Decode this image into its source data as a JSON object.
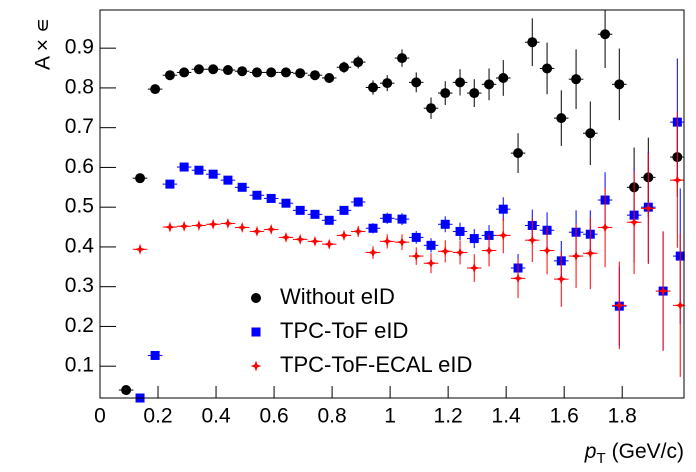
{
  "chart_data": {
    "type": "scatter",
    "ylabel": "A × ∊",
    "xlabel": {
      "symbol": "p",
      "subscript": "T",
      "unit": "(GeV/c)"
    },
    "xlim": [
      0,
      2.013
    ],
    "ylim": [
      0.02,
      0.996
    ],
    "xticks": [
      0,
      0.2,
      0.4,
      0.6,
      0.8,
      1,
      1.2,
      1.4,
      1.6,
      1.8
    ],
    "yticks": [
      0.1,
      0.2,
      0.3,
      0.4,
      0.5,
      0.6,
      0.7,
      0.8,
      0.9
    ],
    "xerr": 0.025,
    "series": [
      {
        "name": "Without eID",
        "color": "#000000",
        "marker": "circle",
        "x": [
          0.09,
          0.138,
          0.19,
          0.241,
          0.29,
          0.341,
          0.39,
          0.441,
          0.49,
          0.541,
          0.59,
          0.641,
          0.69,
          0.741,
          0.79,
          0.841,
          0.89,
          0.941,
          0.99,
          1.041,
          1.09,
          1.141,
          1.19,
          1.241,
          1.29,
          1.341,
          1.39,
          1.441,
          1.49,
          1.541,
          1.59,
          1.641,
          1.69,
          1.741,
          1.79,
          1.841,
          1.89,
          1.99
        ],
        "values": [
          0.04,
          0.573,
          0.797,
          0.832,
          0.839,
          0.847,
          0.847,
          0.845,
          0.842,
          0.839,
          0.839,
          0.839,
          0.837,
          0.832,
          0.825,
          0.852,
          0.865,
          0.801,
          0.812,
          0.875,
          0.814,
          0.749,
          0.787,
          0.814,
          0.787,
          0.809,
          0.825,
          0.636,
          0.915,
          0.849,
          0.724,
          0.822,
          0.686,
          0.935,
          0.809,
          0.55,
          0.575,
          0.626
        ],
        "errors": [
          0.005,
          0.005,
          0.005,
          0.005,
          0.005,
          0.006,
          0.006,
          0.007,
          0.007,
          0.008,
          0.008,
          0.009,
          0.009,
          0.01,
          0.012,
          0.014,
          0.016,
          0.018,
          0.02,
          0.022,
          0.025,
          0.027,
          0.03,
          0.033,
          0.035,
          0.04,
          0.045,
          0.05,
          0.06,
          0.065,
          0.07,
          0.075,
          0.08,
          0.085,
          0.09,
          0.1,
          0.1,
          0.1
        ]
      },
      {
        "name": "TPC-ToF eID",
        "color": "#0000ff",
        "marker": "square",
        "x": [
          0.138,
          0.19,
          0.241,
          0.29,
          0.341,
          0.39,
          0.441,
          0.49,
          0.541,
          0.59,
          0.641,
          0.69,
          0.741,
          0.79,
          0.841,
          0.89,
          0.941,
          0.99,
          1.041,
          1.09,
          1.141,
          1.19,
          1.241,
          1.29,
          1.341,
          1.39,
          1.441,
          1.49,
          1.541,
          1.59,
          1.641,
          1.69,
          1.741,
          1.79,
          1.841,
          1.89,
          1.941,
          1.99,
          2.0
        ],
        "values": [
          0.02,
          0.127,
          0.558,
          0.601,
          0.593,
          0.583,
          0.568,
          0.55,
          0.53,
          0.522,
          0.51,
          0.492,
          0.482,
          0.467,
          0.492,
          0.513,
          0.447,
          0.472,
          0.47,
          0.424,
          0.404,
          0.457,
          0.439,
          0.421,
          0.429,
          0.495,
          0.347,
          0.454,
          0.442,
          0.365,
          0.437,
          0.432,
          0.518,
          0.251,
          0.48,
          0.5,
          0.289,
          0.714,
          0.377
        ],
        "errors": [
          0.003,
          0.004,
          0.005,
          0.005,
          0.005,
          0.005,
          0.006,
          0.006,
          0.007,
          0.007,
          0.008,
          0.008,
          0.009,
          0.01,
          0.011,
          0.012,
          0.013,
          0.014,
          0.015,
          0.016,
          0.018,
          0.02,
          0.022,
          0.024,
          0.026,
          0.03,
          0.035,
          0.04,
          0.045,
          0.05,
          0.055,
          0.06,
          0.07,
          0.1,
          0.12,
          0.14,
          0.15,
          0.16,
          0.17
        ]
      },
      {
        "name": "TPC-ToF-ECAL eID",
        "color": "#ff0000",
        "marker": "star",
        "x": [
          0.138,
          0.241,
          0.29,
          0.341,
          0.39,
          0.441,
          0.49,
          0.541,
          0.59,
          0.641,
          0.69,
          0.741,
          0.79,
          0.841,
          0.89,
          0.941,
          0.99,
          1.041,
          1.09,
          1.141,
          1.19,
          1.241,
          1.29,
          1.341,
          1.39,
          1.441,
          1.49,
          1.541,
          1.59,
          1.641,
          1.69,
          1.741,
          1.79,
          1.841,
          1.89,
          1.941,
          1.99,
          2.0
        ],
        "values": [
          0.394,
          0.45,
          0.452,
          0.454,
          0.457,
          0.459,
          0.449,
          0.439,
          0.444,
          0.424,
          0.419,
          0.414,
          0.407,
          0.429,
          0.439,
          0.386,
          0.414,
          0.412,
          0.377,
          0.359,
          0.389,
          0.386,
          0.347,
          0.391,
          0.429,
          0.321,
          0.417,
          0.391,
          0.319,
          0.377,
          0.384,
          0.449,
          0.253,
          0.462,
          0.497,
          0.289,
          0.568,
          0.253
        ],
        "errors": [
          0.004,
          0.005,
          0.005,
          0.005,
          0.005,
          0.006,
          0.006,
          0.007,
          0.007,
          0.008,
          0.008,
          0.009,
          0.01,
          0.012,
          0.014,
          0.016,
          0.018,
          0.02,
          0.022,
          0.025,
          0.028,
          0.03,
          0.035,
          0.04,
          0.045,
          0.05,
          0.055,
          0.06,
          0.07,
          0.08,
          0.09,
          0.1,
          0.11,
          0.13,
          0.14,
          0.15,
          0.17,
          0.18
        ]
      }
    ]
  }
}
